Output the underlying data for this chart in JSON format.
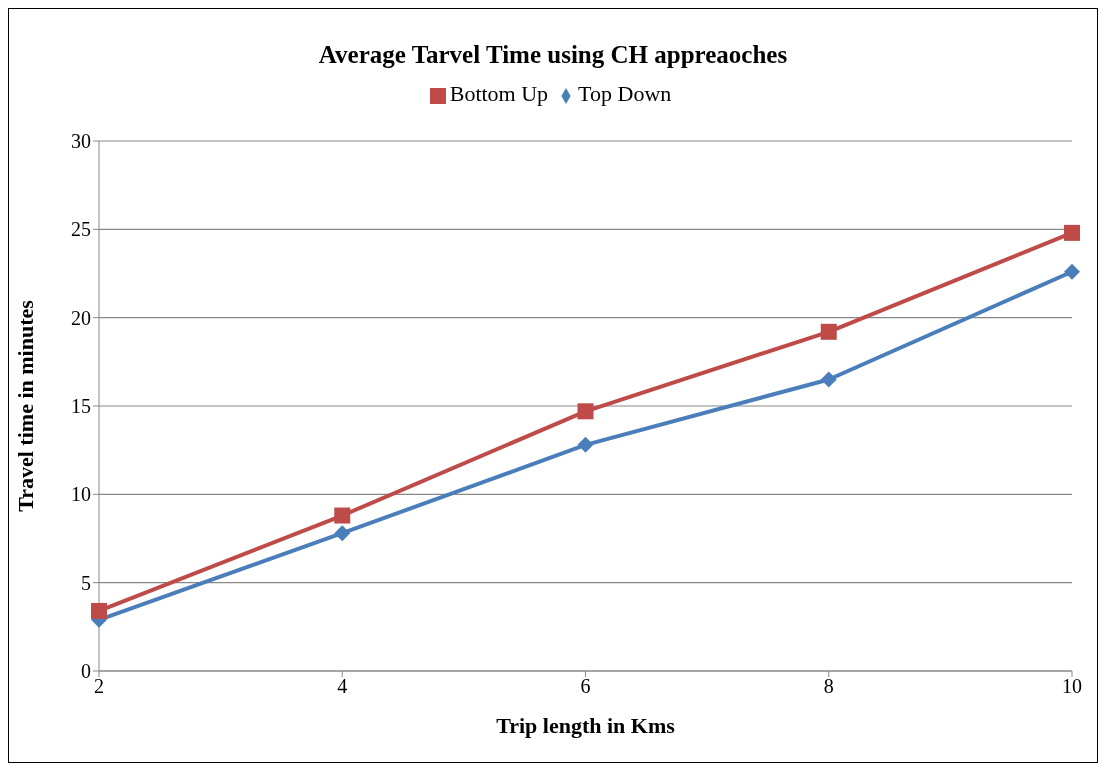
{
  "chart_data": {
    "type": "line",
    "title": "Average Tarvel Time using CH appreaoches",
    "xlabel": "Trip length in Kms",
    "ylabel": "Travel time in minutes",
    "categories": [
      "2",
      "4",
      "6",
      "8",
      "10"
    ],
    "series": [
      {
        "name": "Top Down",
        "color": "#4a7ebb",
        "marker": "diamond",
        "values": [
          2.9,
          7.8,
          12.8,
          16.5,
          22.6
        ]
      },
      {
        "name": "Bottom Up",
        "color": "#be4b48",
        "marker": "square",
        "values": [
          3.4,
          8.8,
          14.7,
          19.2,
          24.8
        ]
      }
    ],
    "ylim": [
      0,
      30
    ],
    "yticks": [
      0,
      5,
      10,
      15,
      20,
      25,
      30
    ],
    "grid": "y",
    "legend": "top",
    "line_style": "solid"
  }
}
